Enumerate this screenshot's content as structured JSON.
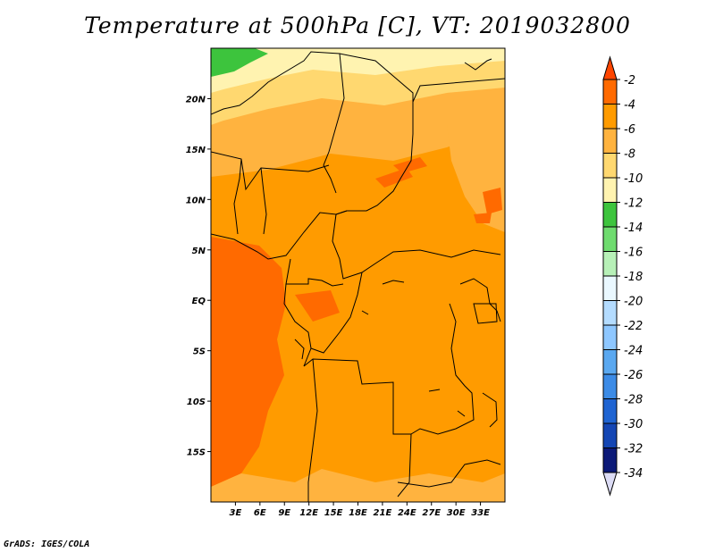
{
  "title": "Temperature at 500hPa [C], VT: 2019032800",
  "credit": "GrADS: IGES/COLA",
  "map": {
    "lon_range": [
      0,
      36
    ],
    "lat_range": [
      -20,
      25
    ],
    "x_ticks": [
      {
        "value": 3,
        "label": "3E"
      },
      {
        "value": 6,
        "label": "6E"
      },
      {
        "value": 9,
        "label": "9E"
      },
      {
        "value": 12,
        "label": "12E"
      },
      {
        "value": 15,
        "label": "15E"
      },
      {
        "value": 18,
        "label": "18E"
      },
      {
        "value": 21,
        "label": "21E"
      },
      {
        "value": 24,
        "label": "24E"
      },
      {
        "value": 27,
        "label": "27E"
      },
      {
        "value": 30,
        "label": "30E"
      },
      {
        "value": 33,
        "label": "33E"
      }
    ],
    "y_ticks": [
      {
        "value": 20,
        "label": "20N"
      },
      {
        "value": 15,
        "label": "15N"
      },
      {
        "value": 10,
        "label": "10N"
      },
      {
        "value": 5,
        "label": "5N"
      },
      {
        "value": 0,
        "label": "EQ"
      },
      {
        "value": -5,
        "label": "5S"
      },
      {
        "value": -10,
        "label": "10S"
      },
      {
        "value": -15,
        "label": "15S"
      }
    ]
  },
  "colorbar": {
    "labels": [
      "-2",
      "-4",
      "-6",
      "-8",
      "-10",
      "-12",
      "-14",
      "-16",
      "-18",
      "-20",
      "-22",
      "-24",
      "-26",
      "-28",
      "-30",
      "-32",
      "-34"
    ],
    "colors": [
      "#ff4500",
      "#ff6a00",
      "#ff9b00",
      "#ffb33f",
      "#ffd870",
      "#fff3b0",
      "#3dc43d",
      "#6fdc6f",
      "#b7f0b7",
      "#eaf8ff",
      "#b4dcff",
      "#8ec7ff",
      "#5aa8f0",
      "#3c8be6",
      "#1f64d2",
      "#1446b4",
      "#0c1a78",
      "#dcdcf5"
    ]
  }
}
